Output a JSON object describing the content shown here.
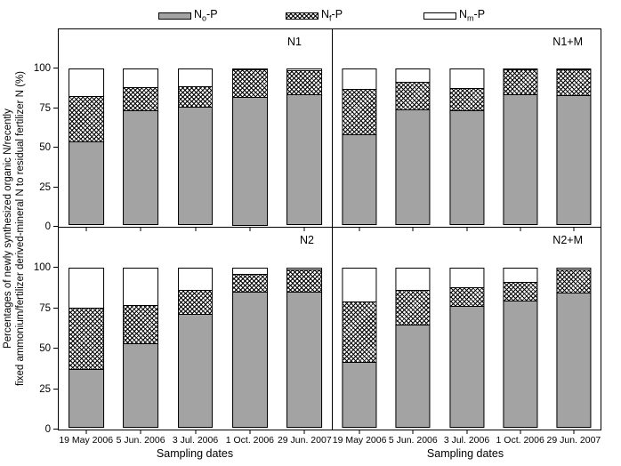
{
  "legend": {
    "items": [
      {
        "pre": "N",
        "sub": "o",
        "post": "-P",
        "swatch": "gray"
      },
      {
        "pre": "N",
        "sub": "f",
        "post": "-P",
        "swatch": "crosshatch"
      },
      {
        "pre": "N",
        "sub": "m",
        "post": "-P",
        "swatch": "white"
      }
    ]
  },
  "axes": {
    "y_label_line1": "Percentages of newly synthesized organic N/recently",
    "y_label_line2": "fixed ammonium/fertilizer derived-mineral N to residual fertilizer N (%)",
    "x_label_left": "Sampling dates",
    "x_label_right": "Sampling dates",
    "y_ticks": [
      0,
      25,
      50,
      75,
      100
    ],
    "y_max": 125
  },
  "chart_data": {
    "type": "bar",
    "stacked": true,
    "grid": false,
    "legend_position": "top",
    "categories": [
      "19 May 2006",
      "5 Jun. 2006",
      "3 Jul. 2006",
      "1 Oct. 2006",
      "29 Jun. 2007"
    ],
    "series_names": [
      "No-P (gray)",
      "Nf-P (crosshatch)",
      "Nm-P (white)"
    ],
    "ylim": [
      0,
      125
    ],
    "ylabel": "Percentages of newly synthesized organic N/recently fixed ammonium/fertilizer derived-mineral N to residual fertilizer N (%)",
    "xlabel": "Sampling dates",
    "panels": [
      {
        "label": "N1",
        "series": [
          {
            "name": "No-P",
            "values": [
              53,
              72.5,
              75,
              81.5,
              82.5
            ]
          },
          {
            "name": "Nf-P",
            "values": [
              29,
              15.5,
              13.5,
              18,
              16
            ]
          },
          {
            "name": "Nm-P",
            "values": [
              18,
              12,
              11.5,
              0.5,
              1.5
            ]
          }
        ]
      },
      {
        "label": "N1+M",
        "series": [
          {
            "name": "No-P",
            "values": [
              57.5,
              73,
              72.5,
              83,
              82.5
            ]
          },
          {
            "name": "Nf-P",
            "values": [
              29,
              18,
              14.5,
              16,
              16.5
            ]
          },
          {
            "name": "Nm-P",
            "values": [
              13.5,
              9,
              13,
              1,
              1
            ]
          }
        ]
      },
      {
        "label": "N2",
        "series": [
          {
            "name": "No-P",
            "values": [
              36.5,
              52.5,
              70.5,
              84,
              84.5
            ]
          },
          {
            "name": "Nf-P",
            "values": [
              38.5,
              24,
              15.5,
              12,
              14
            ]
          },
          {
            "name": "Nm-P",
            "values": [
              25,
              23.5,
              14,
              4,
              1.5
            ]
          }
        ]
      },
      {
        "label": "N2+M",
        "series": [
          {
            "name": "No-P",
            "values": [
              40.5,
              64,
              75.5,
              79,
              83.5
            ]
          },
          {
            "name": "Nf-P",
            "values": [
              38.5,
              22,
              12,
              12,
              15
            ]
          },
          {
            "name": "Nm-P",
            "values": [
              21,
              14,
              12.5,
              9,
              1.5
            ]
          }
        ]
      }
    ]
  },
  "colors": {
    "bar_gray": "#a3a3a3",
    "outline": "#000000",
    "background": "#ffffff"
  }
}
